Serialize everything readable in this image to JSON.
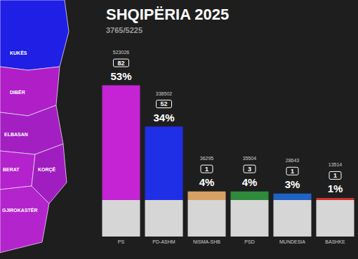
{
  "chart_data": {
    "type": "bar",
    "title": "SHQIPËRIA 2025",
    "subtitle": "3765/5225",
    "categories": [
      "PS",
      "PD-ASHM",
      "NISMA-SHB",
      "PSD",
      "MUNDESIA",
      "BASHKE"
    ],
    "values": [
      53,
      34,
      4,
      4,
      3,
      1
    ],
    "value_labels": [
      "53%",
      "34%",
      "4%",
      "4%",
      "3%",
      "1%"
    ],
    "votes": [
      523026,
      338502,
      36295,
      35504,
      28643,
      13514
    ],
    "seats": [
      82,
      52,
      1,
      3,
      1,
      1
    ],
    "colors": [
      "#c424d4",
      "#1f2fe6",
      "#d9a066",
      "#2f8a3c",
      "#1e63c6",
      "#d32f2f"
    ],
    "ylim": [
      0,
      60
    ],
    "yticks": [
      0,
      60
    ],
    "grid": false,
    "data_labels": true,
    "tick_labels": "x"
  },
  "map": {
    "regions": [
      {
        "label": "KUKËS",
        "color": "#1f1fe6"
      },
      {
        "label": "DIBËR",
        "color": "#b01ec8"
      },
      {
        "label": "ELBASAN",
        "color": "#a41fc2"
      },
      {
        "label": "BERAT",
        "color": "#b322cc"
      },
      {
        "label": "KORÇË",
        "color": "#a01ec0"
      },
      {
        "label": "GJIROKASTËR",
        "color": "#b424cd"
      }
    ]
  }
}
